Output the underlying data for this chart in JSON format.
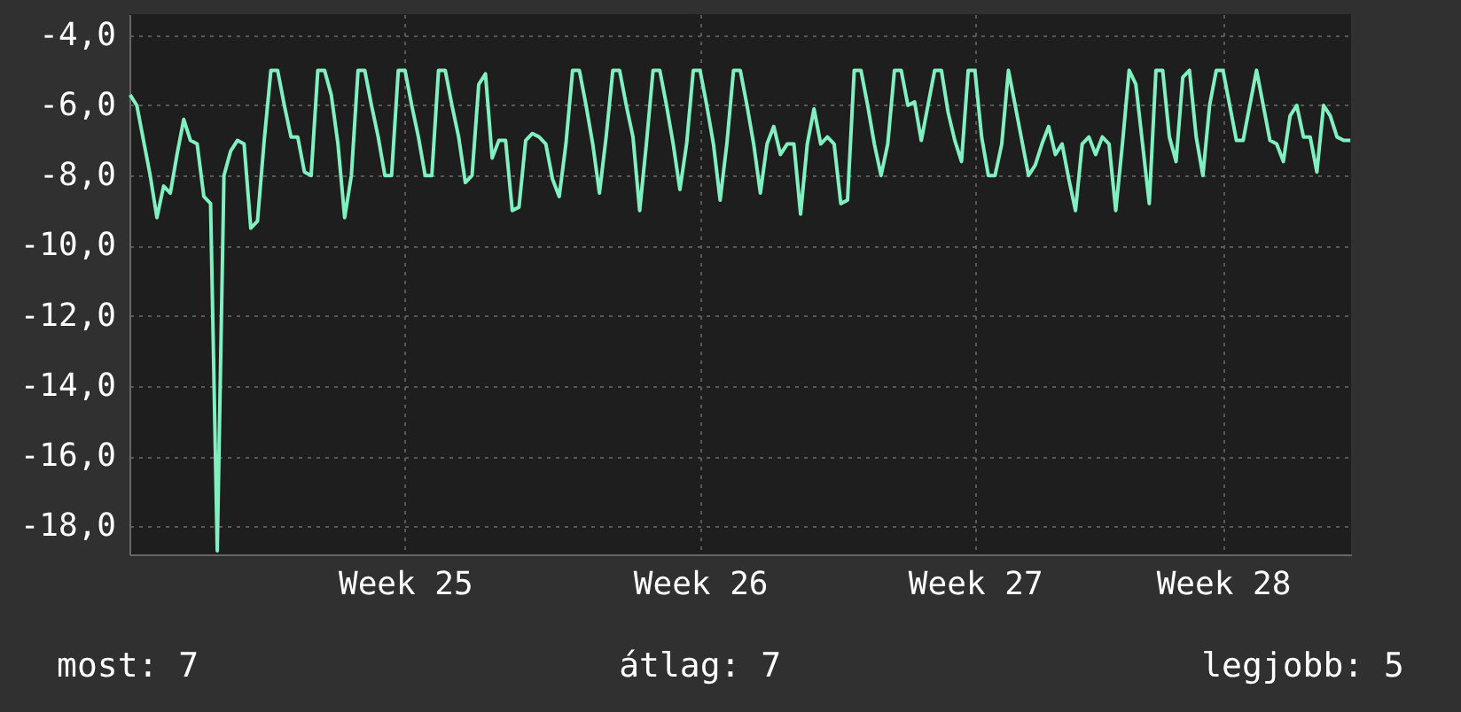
{
  "chart_data": {
    "type": "line",
    "ylim": [
      -18.8,
      -3.4
    ],
    "categories": [
      null,
      null,
      null,
      null,
      null,
      null,
      null,
      null,
      null,
      null,
      null,
      null,
      null,
      null,
      null,
      null,
      null,
      null,
      null,
      null,
      null,
      null,
      null,
      null,
      null,
      null,
      null,
      null,
      null,
      null,
      null,
      null,
      null,
      null,
      null,
      null,
      null,
      null,
      null,
      null,
      null,
      "Week 25",
      null,
      null,
      null,
      null,
      null,
      null,
      null,
      null,
      null,
      null,
      null,
      null,
      null,
      null,
      null,
      null,
      null,
      null,
      null,
      null,
      null,
      null,
      null,
      null,
      null,
      null,
      null,
      null,
      null,
      null,
      null,
      null,
      null,
      null,
      null,
      null,
      null,
      null,
      null,
      null,
      null,
      null,
      null,
      "Week 26",
      null,
      null,
      null,
      null,
      null,
      null,
      null,
      null,
      null,
      null,
      null,
      null,
      null,
      null,
      null,
      null,
      null,
      null,
      null,
      null,
      null,
      null,
      null,
      null,
      null,
      null,
      null,
      null,
      null,
      null,
      null,
      null,
      null,
      null,
      null,
      null,
      null,
      null,
      null,
      null,
      "Week 27",
      null,
      null,
      null,
      null,
      null,
      null,
      null,
      null,
      null,
      null,
      null,
      null,
      null,
      null,
      null,
      null,
      null,
      null,
      null,
      null,
      null,
      null,
      null,
      null,
      null,
      null,
      null,
      null,
      null,
      null,
      null,
      null,
      null,
      null,
      null,
      null,
      "Week 28",
      null,
      null,
      null,
      null,
      null,
      null,
      null,
      null,
      null,
      null,
      null,
      null,
      null,
      null,
      null,
      null,
      null,
      null,
      null
    ],
    "yticks": [
      {
        "value": -18,
        "label": "-18,0"
      },
      {
        "value": -16,
        "label": "-16,0"
      },
      {
        "value": -14,
        "label": "-14,0"
      },
      {
        "value": -12,
        "label": "-12,0"
      },
      {
        "value": -10,
        "label": "-10,0"
      },
      {
        "value": -8,
        "label": "-8,0"
      },
      {
        "value": -6,
        "label": "-6,0"
      },
      {
        "value": -4,
        "label": "-4,0"
      }
    ],
    "grid": true,
    "marker": "none",
    "line_style": "solid",
    "annotations": [
      "most: 7",
      "átlag: 7",
      "legjobb: 5"
    ],
    "series": [
      {
        "color": "#80f0c0",
        "values": [
          -5.7,
          -6.0,
          -7.0,
          -8.0,
          -9.2,
          -8.3,
          -8.5,
          -7.4,
          -6.4,
          -7.0,
          -7.1,
          -8.6,
          -8.8,
          -18.7,
          -8.0,
          -7.3,
          -7.0,
          -7.1,
          -9.5,
          -9.3,
          -7.0,
          -5.0,
          -5.0,
          -6.0,
          -6.9,
          -6.9,
          -7.9,
          -8.0,
          -5.0,
          -5.0,
          -5.7,
          -7.1,
          -9.2,
          -8.0,
          -5.0,
          -5.0,
          -6.0,
          -6.9,
          -8.0,
          -8.0,
          -5.0,
          -5.0,
          -6.0,
          -6.9,
          -8.0,
          -8.0,
          -5.0,
          -5.0,
          -6.0,
          -6.9,
          -8.2,
          -8.0,
          -5.4,
          -5.1,
          -7.5,
          -7.0,
          -7.0,
          -9.0,
          -8.9,
          -7.0,
          -6.8,
          -6.9,
          -7.1,
          -8.1,
          -8.6,
          -7.1,
          -5.0,
          -5.0,
          -6.0,
          -7.1,
          -8.5,
          -6.9,
          -5.0,
          -5.0,
          -6.0,
          -6.9,
          -9.0,
          -7.1,
          -5.0,
          -5.0,
          -6.0,
          -7.1,
          -8.4,
          -7.1,
          -5.0,
          -5.0,
          -6.0,
          -7.1,
          -8.7,
          -7.1,
          -5.0,
          -5.0,
          -6.0,
          -7.1,
          -8.5,
          -7.1,
          -6.6,
          -7.4,
          -7.1,
          -7.1,
          -9.1,
          -7.1,
          -6.1,
          -7.1,
          -6.9,
          -7.1,
          -8.8,
          -8.7,
          -5.0,
          -5.0,
          -6.0,
          -7.1,
          -8.0,
          -7.1,
          -5.0,
          -5.0,
          -6.0,
          -5.9,
          -7.0,
          -6.0,
          -5.0,
          -5.0,
          -6.2,
          -7.0,
          -7.6,
          -5.0,
          -5.0,
          -6.9,
          -8.0,
          -8.0,
          -7.1,
          -5.0,
          -6.0,
          -7.0,
          -8.0,
          -7.7,
          -7.1,
          -6.6,
          -7.4,
          -7.1,
          -8.1,
          -9.0,
          -7.1,
          -6.9,
          -7.4,
          -6.9,
          -7.1,
          -9.0,
          -7.1,
          -5.0,
          -5.4,
          -7.1,
          -8.8,
          -5.0,
          -5.0,
          -6.9,
          -7.6,
          -5.2,
          -5.0,
          -6.9,
          -8.0,
          -6.0,
          -5.0,
          -5.0,
          -6.0,
          -7.0,
          -7.0,
          -6.0,
          -5.0,
          -6.0,
          -7.0,
          -7.1,
          -7.6,
          -6.3,
          -6.0,
          -6.9,
          -6.9,
          -7.9,
          -6.0,
          -6.3,
          -6.9,
          -7.0,
          -7.0
        ]
      }
    ]
  }
}
